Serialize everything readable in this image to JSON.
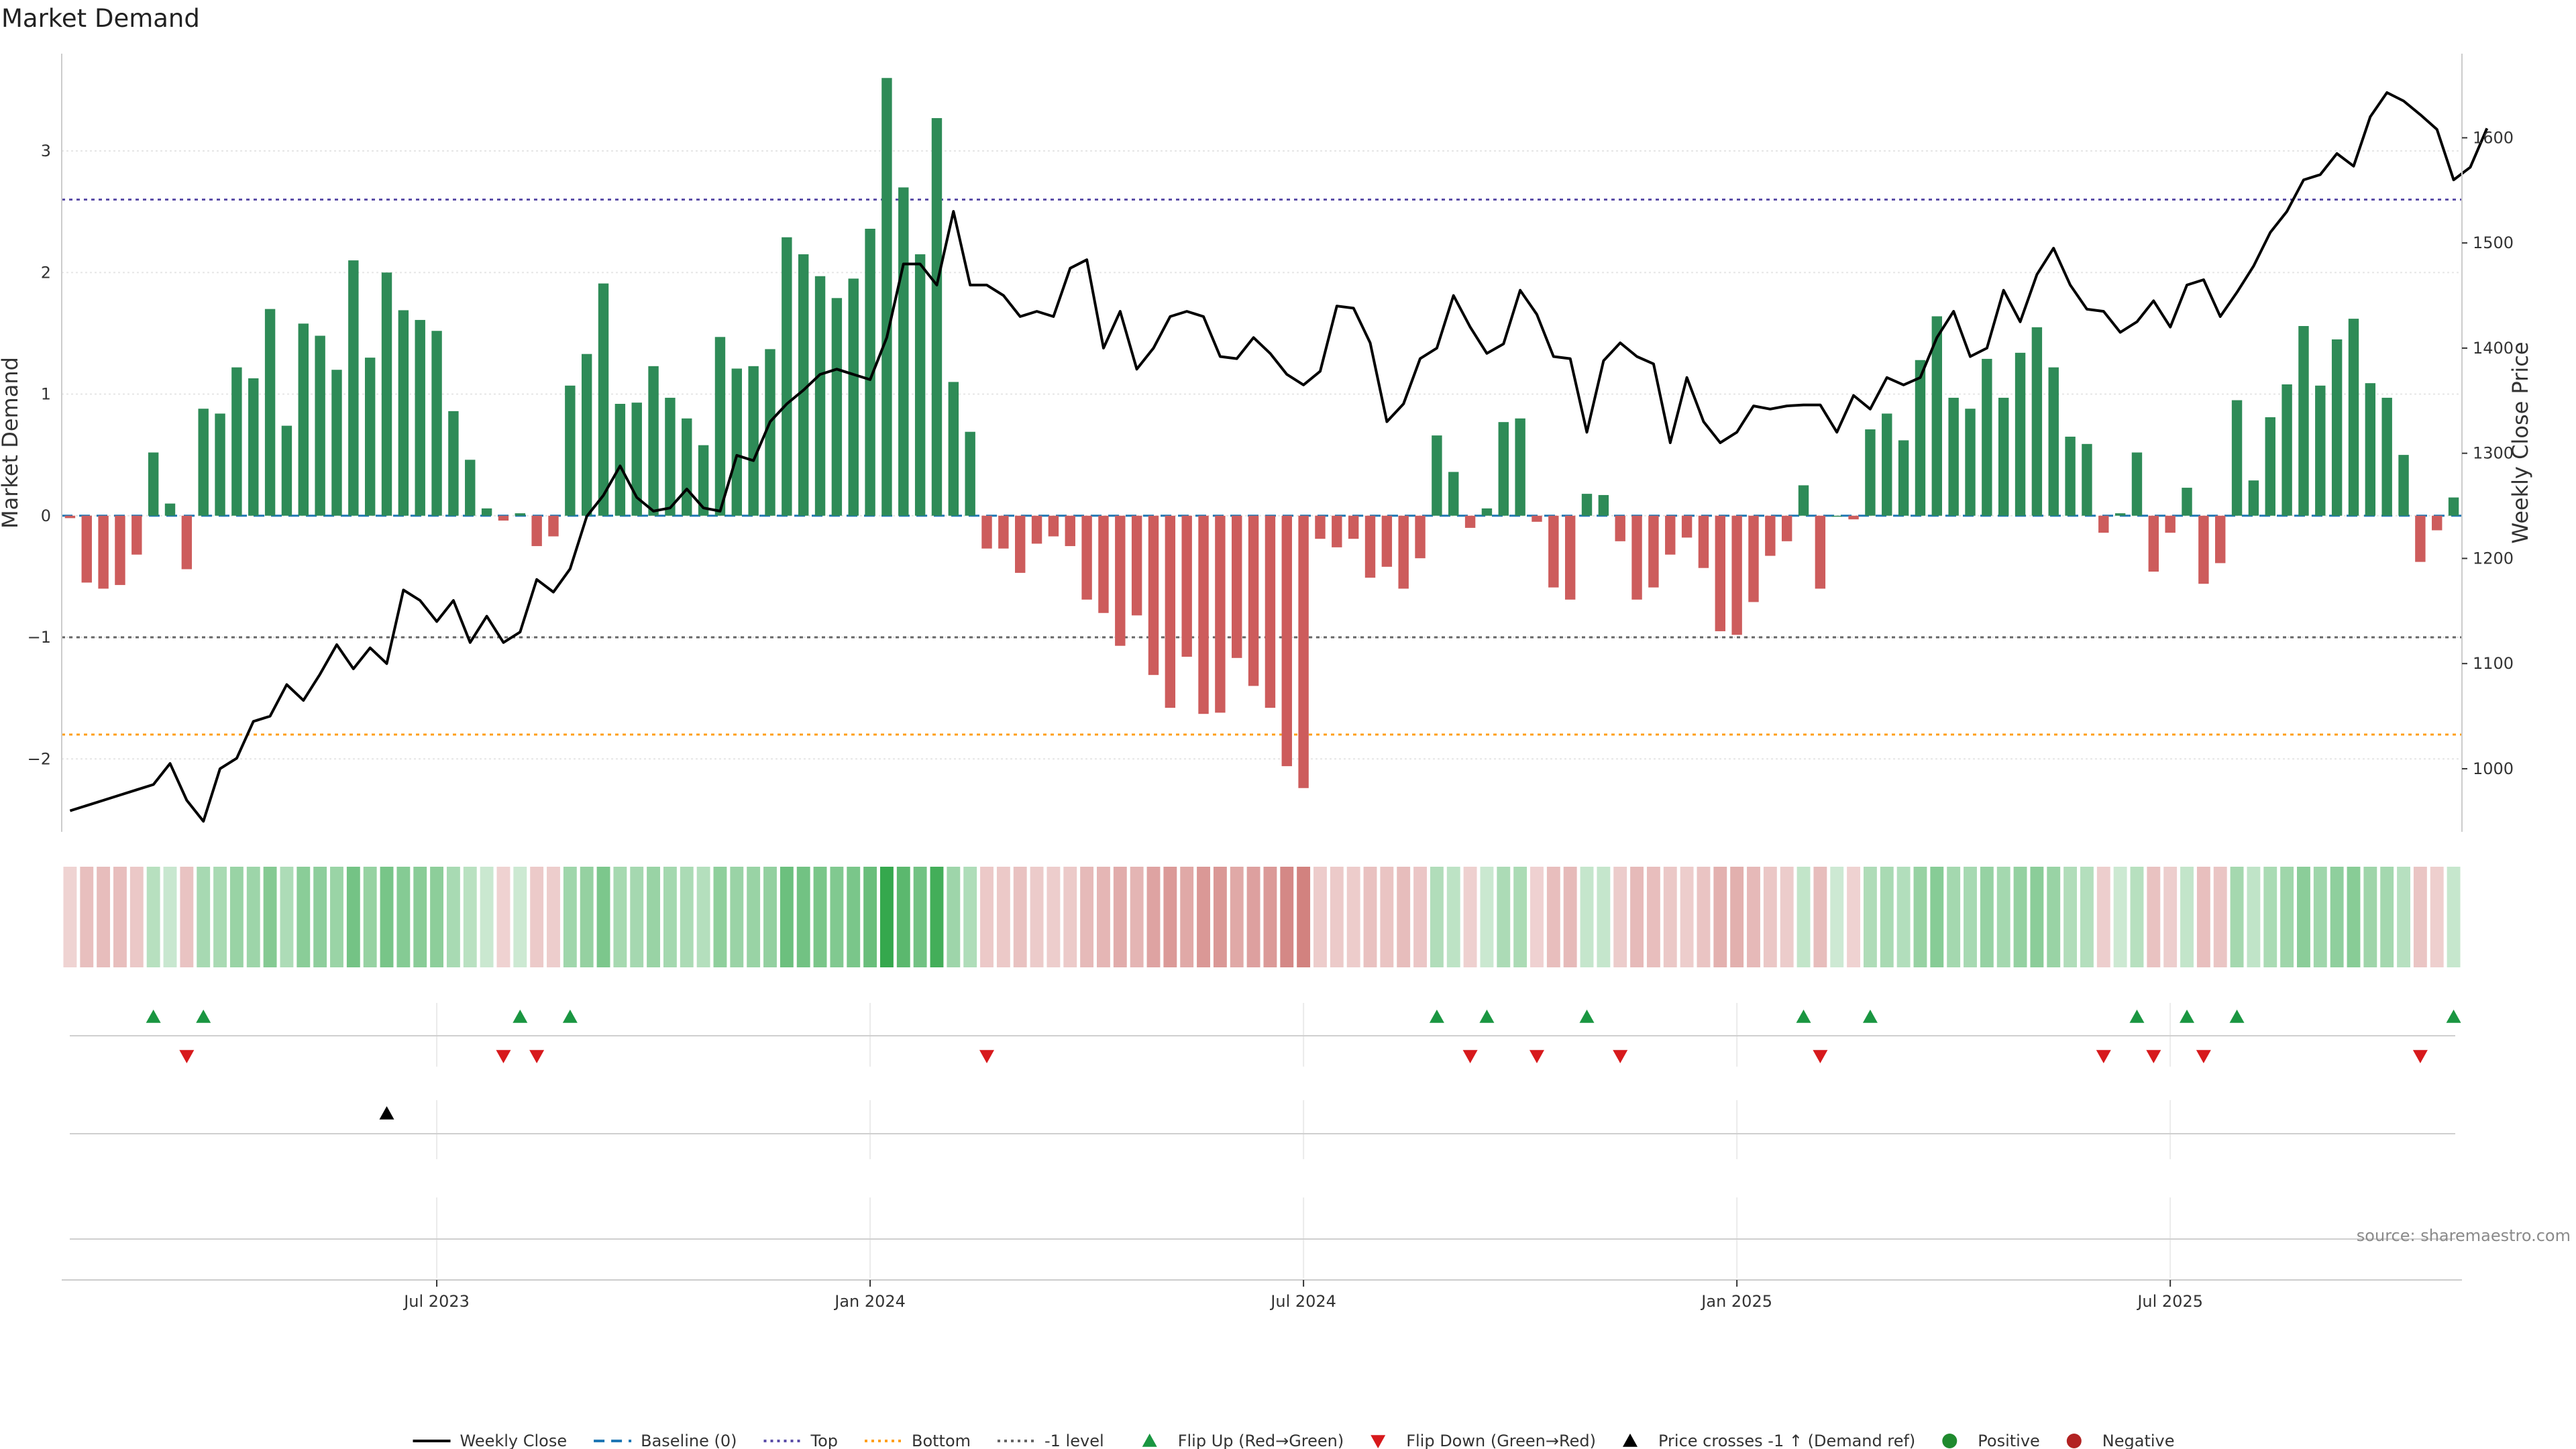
{
  "chart_data": {
    "type": "bar",
    "title": "Market Demand",
    "ylabel": "Market Demand",
    "y2label": "Weekly Close Price",
    "ylim": [
      -2.6,
      3.8
    ],
    "y2lim": [
      940,
      1680
    ],
    "yticks": [
      -2,
      -1,
      0,
      1,
      2,
      3
    ],
    "yticklabels": [
      "−2",
      "−1",
      "0",
      "1",
      "2",
      "3"
    ],
    "y2ticks": [
      1000,
      1100,
      1200,
      1300,
      1400,
      1500,
      1600
    ],
    "y2ticklabels": [
      "1000",
      "1100",
      "1200",
      "1300",
      "1400",
      "1500",
      "1600"
    ],
    "xticks": [
      {
        "index": 22,
        "label": "Jul 2023"
      },
      {
        "index": 48,
        "label": "Jan 2024"
      },
      {
        "index": 74,
        "label": "Jul 2024"
      },
      {
        "index": 100,
        "label": "Jan 2025"
      },
      {
        "index": 126,
        "label": "Jul 2025"
      }
    ],
    "reference_lines": {
      "top": 2.6,
      "bottom": -1.8,
      "minus_one": -1.0,
      "baseline": 0
    },
    "series": [
      {
        "name": "Market Demand",
        "values": [
          -0.02,
          -0.55,
          -0.6,
          -0.57,
          -0.32,
          0.52,
          0.1,
          -0.44,
          0.88,
          0.84,
          1.22,
          1.13,
          1.7,
          0.74,
          1.58,
          1.48,
          1.2,
          2.1,
          1.3,
          2.0,
          1.69,
          1.61,
          1.52,
          0.86,
          0.46,
          0.06,
          -0.04,
          0.02,
          -0.25,
          -0.17,
          1.07,
          1.33,
          1.91,
          0.92,
          0.93,
          1.23,
          0.97,
          0.8,
          0.58,
          1.47,
          1.21,
          1.23,
          1.37,
          2.29,
          2.15,
          1.97,
          1.79,
          1.95,
          2.36,
          3.6,
          2.7,
          2.15,
          3.27,
          1.1,
          0.69,
          -0.27,
          -0.27,
          -0.47,
          -0.23,
          -0.17,
          -0.25,
          -0.69,
          -0.8,
          -1.07,
          -0.82,
          -1.31,
          -1.58,
          -1.16,
          -1.63,
          -1.62,
          -1.17,
          -1.4,
          -1.58,
          -2.06,
          -2.24,
          -0.19,
          -0.26,
          -0.19,
          -0.51,
          -0.42,
          -0.6,
          -0.35,
          0.66,
          0.36,
          -0.1,
          0.06,
          0.77,
          0.8,
          -0.05,
          -0.59,
          -0.69,
          0.18,
          0.17,
          -0.21,
          -0.69,
          -0.59,
          -0.32,
          -0.18,
          -0.43,
          -0.95,
          -0.98,
          -0.71,
          -0.33,
          -0.21,
          0.25,
          -0.6,
          0.0,
          -0.03,
          0.71,
          0.84,
          0.62,
          1.28,
          1.64,
          0.97,
          0.88,
          1.29,
          0.97,
          1.34,
          1.55,
          1.22,
          0.65,
          0.59,
          -0.14,
          0.02,
          0.52,
          -0.46,
          -0.14,
          0.23,
          -0.56,
          -0.39,
          0.95,
          0.29,
          0.81,
          1.08,
          1.56,
          1.07,
          1.45,
          1.62,
          1.09,
          0.97,
          0.5,
          -0.38,
          -0.12,
          0.15
        ]
      },
      {
        "name": "Weekly Close",
        "values": [
          960,
          965,
          970,
          975,
          980,
          985,
          1005,
          970,
          950,
          1000,
          1010,
          1045,
          1050,
          1080,
          1065,
          1090,
          1118,
          1095,
          1115,
          1100,
          1170,
          1160,
          1140,
          1160,
          1120,
          1145,
          1120,
          1130,
          1180,
          1168,
          1190,
          1240,
          1260,
          1288,
          1258,
          1245,
          1248,
          1266,
          1248,
          1245,
          1298,
          1293,
          1330,
          1347,
          1360,
          1375,
          1380,
          1375,
          1370,
          1410,
          1480,
          1480,
          1460,
          1530,
          1460,
          1460,
          1450,
          1430,
          1435,
          1430,
          1476,
          1484,
          1400,
          1435,
          1380,
          1400,
          1430,
          1435,
          1430,
          1392,
          1390,
          1410,
          1395,
          1375,
          1365,
          1378,
          1440,
          1438,
          1405,
          1330,
          1347,
          1390,
          1400,
          1450,
          1420,
          1395,
          1404,
          1455,
          1432,
          1392,
          1390,
          1320,
          1388,
          1405,
          1392,
          1385,
          1310,
          1372,
          1330,
          1310,
          1320,
          1345,
          1342,
          1345,
          1346,
          1346,
          1320,
          1355,
          1342,
          1372,
          1365,
          1372,
          1410,
          1435,
          1392,
          1400,
          1455,
          1425,
          1470,
          1495,
          1460,
          1437,
          1435,
          1415,
          1425,
          1445,
          1420,
          1460,
          1465,
          1430,
          1453,
          1478,
          1510,
          1530,
          1560,
          1565,
          1585,
          1573,
          1620,
          1643,
          1635,
          1622,
          1608,
          1560,
          1572,
          1609
        ]
      },
      {
        "name": "Flip Up (Red→Green)",
        "indices": [
          5,
          8,
          27,
          30,
          82,
          85,
          91,
          104,
          108,
          124,
          127,
          130,
          143
        ]
      },
      {
        "name": "Flip Down (Green→Red)",
        "indices": [
          7,
          26,
          28,
          55,
          84,
          88,
          93,
          105,
          122,
          125,
          128,
          141
        ]
      },
      {
        "name": "Price crosses -1 ↑ (Demand ref)",
        "indices": [
          19
        ]
      }
    ],
    "legend": [
      {
        "label": "Weekly Close",
        "kind": "line",
        "color": "#000000"
      },
      {
        "label": "Baseline (0)",
        "kind": "dash",
        "color": "#1f77b4"
      },
      {
        "label": "Top",
        "kind": "dot",
        "color": "#5b4ea8"
      },
      {
        "label": "Bottom",
        "kind": "dot",
        "color": "#ff9f1a"
      },
      {
        "label": "-1 level",
        "kind": "dot",
        "color": "#666666"
      },
      {
        "label": "Flip Up (Red→Green)",
        "kind": "tri-up",
        "color": "#1a9641"
      },
      {
        "label": "Flip Down (Green→Red)",
        "kind": "tri-down",
        "color": "#d7191c"
      },
      {
        "label": "Price crosses -1 ↑ (Demand ref)",
        "kind": "tri-up",
        "color": "#000000"
      },
      {
        "label": "Positive",
        "kind": "circle",
        "color": "#1f8a2e"
      },
      {
        "label": "Negative",
        "kind": "circle",
        "color": "#b22222"
      }
    ],
    "legend_position": "bottom-center",
    "source": "source: sharemaestro.com"
  },
  "colors": {
    "positive_bar": "#2e8b57",
    "negative_bar": "#cd5c5c",
    "price_line": "#000000",
    "baseline": "#1f77b4",
    "top_line": "#5b4ea8",
    "bottom_line": "#ff9f1a",
    "minus_one_line": "#666666",
    "flip_up": "#1a9641",
    "flip_down": "#d7191c",
    "cross_marker": "#000000",
    "grid": "#e6e6e6"
  }
}
